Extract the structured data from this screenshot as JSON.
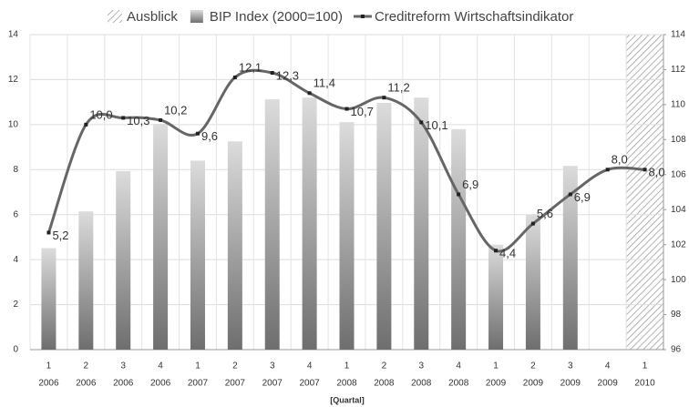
{
  "chart_data": {
    "type": "bar_line",
    "x_label": "[Quartal]",
    "categories": [
      "1",
      "2",
      "3",
      "4",
      "1",
      "2",
      "3",
      "4",
      "1",
      "2",
      "3",
      "4",
      "1",
      "2",
      "3",
      "4",
      "1"
    ],
    "years": [
      "2006",
      "2006",
      "2006",
      "2006",
      "2007",
      "2007",
      "2007",
      "2007",
      "2008",
      "2008",
      "2008",
      "2008",
      "2009",
      "2009",
      "2009",
      "2009",
      "2010"
    ],
    "series": [
      {
        "name": "Ausblick",
        "type": "hatch",
        "color": "#999999",
        "values": [
          null,
          null,
          null,
          null,
          null,
          null,
          null,
          null,
          null,
          null,
          null,
          null,
          null,
          null,
          null,
          null,
          14
        ]
      },
      {
        "name": "BIP Index (2000=100)",
        "type": "bar",
        "axis": "y2",
        "color": "#888888",
        "values": [
          101.8,
          103.9,
          106.2,
          108.9,
          106.8,
          107.9,
          110.3,
          110.4,
          109.0,
          110.1,
          110.4,
          108.6,
          102.0,
          103.7,
          106.5,
          null,
          null
        ]
      },
      {
        "name": "Creditreform Wirtschaftsindikator",
        "type": "line",
        "color": "#666666",
        "values": [
          5.2,
          10.0,
          10.3,
          10.2,
          9.6,
          12.1,
          12.3,
          11.4,
          10.7,
          11.2,
          10.1,
          6.9,
          4.4,
          5.6,
          6.9,
          8.0,
          8.0
        ],
        "value_labels": [
          "5,2",
          "10,0",
          "10,3",
          "10,2",
          "9,6",
          "12,1",
          "12,3",
          "11,4",
          "10,7",
          "11,2",
          "10,1",
          "6,9",
          "4,4",
          "5,6",
          "6,9",
          "8,0",
          "8,0"
        ]
      }
    ],
    "ylim": [
      0,
      14
    ],
    "yticks": [
      0,
      2,
      4,
      6,
      8,
      10,
      12,
      14
    ],
    "y2lim": [
      96,
      114
    ],
    "y2ticks": [
      96,
      98,
      100,
      102,
      104,
      106,
      108,
      110,
      112,
      114
    ],
    "grid": true
  }
}
